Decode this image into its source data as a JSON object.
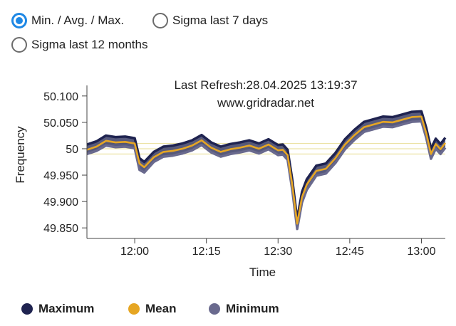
{
  "options": [
    {
      "label": "Min. / Avg. / Max.",
      "checked": true
    },
    {
      "label": "Sigma last 7 days",
      "checked": false
    },
    {
      "label": "Sigma last 12 months",
      "checked": false
    }
  ],
  "chart_data": {
    "type": "area",
    "annotations": [
      "Last Refresh:28.04.2025 13:19:37",
      "www.gridradar.net"
    ],
    "xlabel": "Time",
    "ylabel": "Frequency",
    "x_ticks": [
      "12:00",
      "12:15",
      "12:30",
      "12:45",
      "13:00"
    ],
    "y_ticks": [
      "50.100",
      "50.050",
      "50",
      "49.950",
      "49.900",
      "49.850"
    ],
    "ylim": [
      49.83,
      50.12
    ],
    "xlim": [
      "11:50",
      "13:05"
    ],
    "reference_lines": [
      49.99,
      50.0,
      50.01
    ],
    "x": [
      "11:50",
      "11:52",
      "11:54",
      "11:56",
      "11:58",
      "12:00",
      "12:01",
      "12:02",
      "12:04",
      "12:06",
      "12:08",
      "12:10",
      "12:12",
      "12:14",
      "12:16",
      "12:18",
      "12:20",
      "12:22",
      "12:24",
      "12:26",
      "12:28",
      "12:30",
      "12:31",
      "12:32",
      "12:33",
      "12:34",
      "12:35",
      "12:36",
      "12:38",
      "12:40",
      "12:42",
      "12:44",
      "12:46",
      "12:48",
      "12:50",
      "12:52",
      "12:54",
      "12:56",
      "12:58",
      "13:00",
      "13:01",
      "13:02",
      "13:03",
      "13:04",
      "13:05"
    ],
    "series": [
      {
        "name": "Maximum",
        "color": "#1f2350",
        "values": [
          50.008,
          50.014,
          50.025,
          50.022,
          50.023,
          50.02,
          49.982,
          49.975,
          49.994,
          50.004,
          50.006,
          50.01,
          50.016,
          50.026,
          50.012,
          50.004,
          50.009,
          50.012,
          50.016,
          50.01,
          50.018,
          50.007,
          50.008,
          49.998,
          49.94,
          49.866,
          49.918,
          49.942,
          49.968,
          49.972,
          49.992,
          50.018,
          50.036,
          50.051,
          50.056,
          50.061,
          50.06,
          50.065,
          50.07,
          50.071,
          50.04,
          50.0,
          50.019,
          50.009,
          50.021
        ]
      },
      {
        "name": "Mean",
        "color": "#e6a623",
        "values": [
          49.998,
          50.004,
          50.015,
          50.012,
          50.013,
          50.01,
          49.972,
          49.965,
          49.984,
          49.994,
          49.996,
          50.0,
          50.006,
          50.016,
          50.002,
          49.994,
          49.999,
          50.002,
          50.006,
          50.0,
          50.008,
          49.997,
          49.998,
          49.988,
          49.93,
          49.858,
          49.908,
          49.932,
          49.958,
          49.962,
          49.982,
          50.008,
          50.026,
          50.041,
          50.046,
          50.051,
          50.05,
          50.055,
          50.06,
          50.061,
          50.03,
          49.99,
          50.009,
          49.999,
          50.011
        ]
      },
      {
        "name": "Minimum",
        "color": "#6a6a8e",
        "values": [
          49.99,
          49.996,
          50.006,
          50.003,
          50.004,
          50.001,
          49.96,
          49.955,
          49.975,
          49.985,
          49.987,
          49.991,
          49.997,
          50.007,
          49.993,
          49.985,
          49.99,
          49.993,
          49.997,
          49.991,
          49.999,
          49.988,
          49.989,
          49.979,
          49.92,
          49.848,
          49.898,
          49.922,
          49.949,
          49.953,
          49.973,
          49.999,
          50.017,
          50.032,
          50.037,
          50.042,
          50.041,
          50.046,
          50.051,
          50.052,
          50.021,
          49.981,
          50.0,
          49.99,
          50.002
        ]
      }
    ]
  }
}
